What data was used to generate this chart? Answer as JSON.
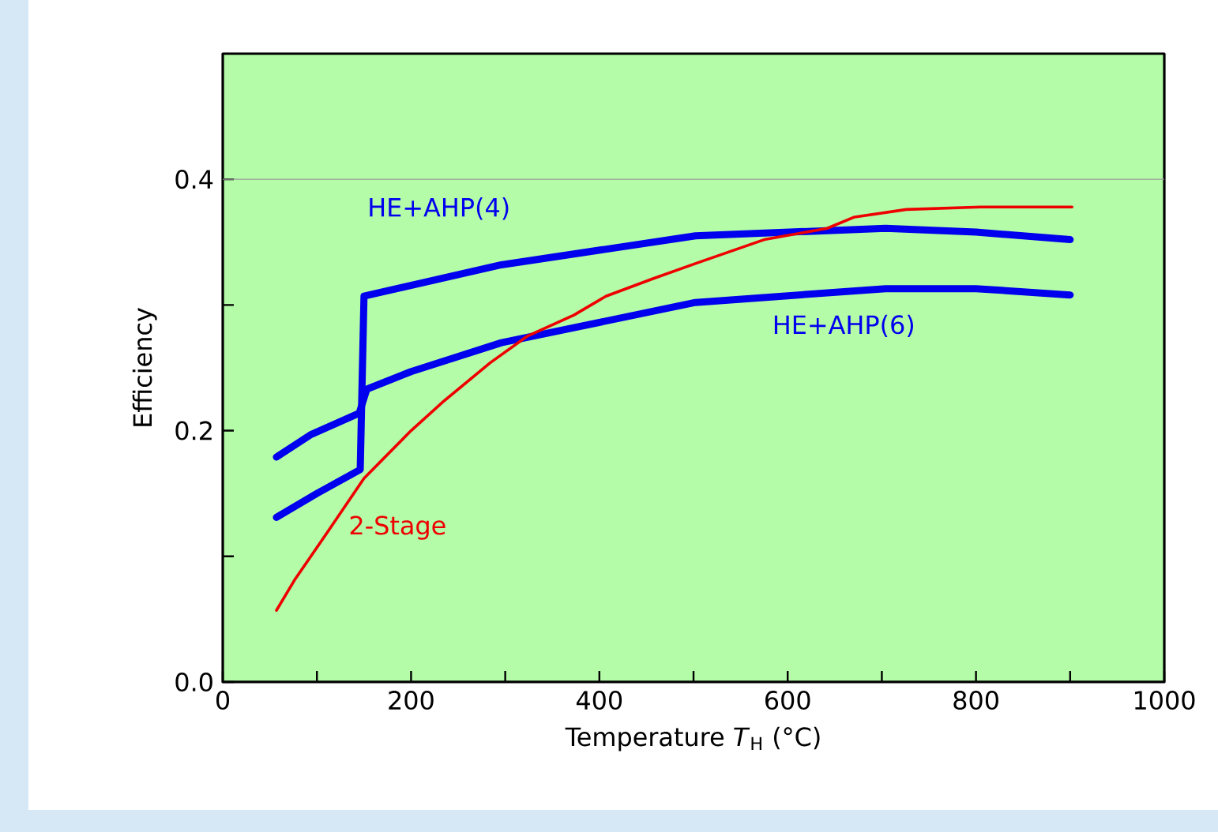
{
  "chart_data": {
    "type": "line",
    "xlabel": "Temperature *T*$_{H}$ (°C)",
    "ylabel": "Efficiency",
    "xlim": [
      0,
      1000
    ],
    "ylim": [
      0,
      0.5
    ],
    "xticks": [
      0,
      {
        "value": 100,
        "label": null
      },
      200,
      {
        "value": 300,
        "label": null
      },
      400,
      {
        "value": 500,
        "label": null
      },
      600,
      {
        "value": 700,
        "label": null
      },
      800,
      {
        "value": 900,
        "label": null
      },
      1000
    ],
    "yticks": [
      {
        "value": 0,
        "label": "0.0"
      },
      {
        "value": 0.1,
        "label": null
      },
      0.2,
      {
        "value": 0.3,
        "label": null
      },
      0.4
    ],
    "ref_lines": [
      {
        "axis": "y",
        "value": 0.4,
        "color": "#999999"
      }
    ],
    "grid": false,
    "legend": false,
    "marker": "none",
    "line_style": "solid",
    "series": [
      {
        "name": "HE+AHP(4)",
        "color": "#0000ee",
        "x": [
          57,
          100,
          146,
          150,
          296,
          502,
          704,
          800,
          900
        ],
        "values": [
          0.131,
          0.15,
          0.169,
          0.307,
          0.332,
          0.355,
          0.361,
          0.358,
          0.352
        ]
      },
      {
        "name": "HE+AHP(6)",
        "color": "#0000ee",
        "x": [
          57,
          94,
          145,
          153,
          200,
          296,
          502,
          704,
          800,
          900
        ],
        "values": [
          0.179,
          0.197,
          0.214,
          0.233,
          0.247,
          0.27,
          0.302,
          0.313,
          0.313,
          0.308
        ]
      },
      {
        "name": "2-Stage",
        "color": "#ee0000",
        "x": [
          57,
          77,
          111,
          150,
          200,
          234,
          284,
          323,
          373,
          407,
          457,
          502,
          575,
          642,
          671,
          726,
          805,
          902
        ],
        "values": [
          0.057,
          0.082,
          0.119,
          0.162,
          0.2,
          0.223,
          0.254,
          0.275,
          0.292,
          0.307,
          0.321,
          0.333,
          0.352,
          0.361,
          0.37,
          0.376,
          0.378,
          0.378
        ]
      }
    ]
  }
}
